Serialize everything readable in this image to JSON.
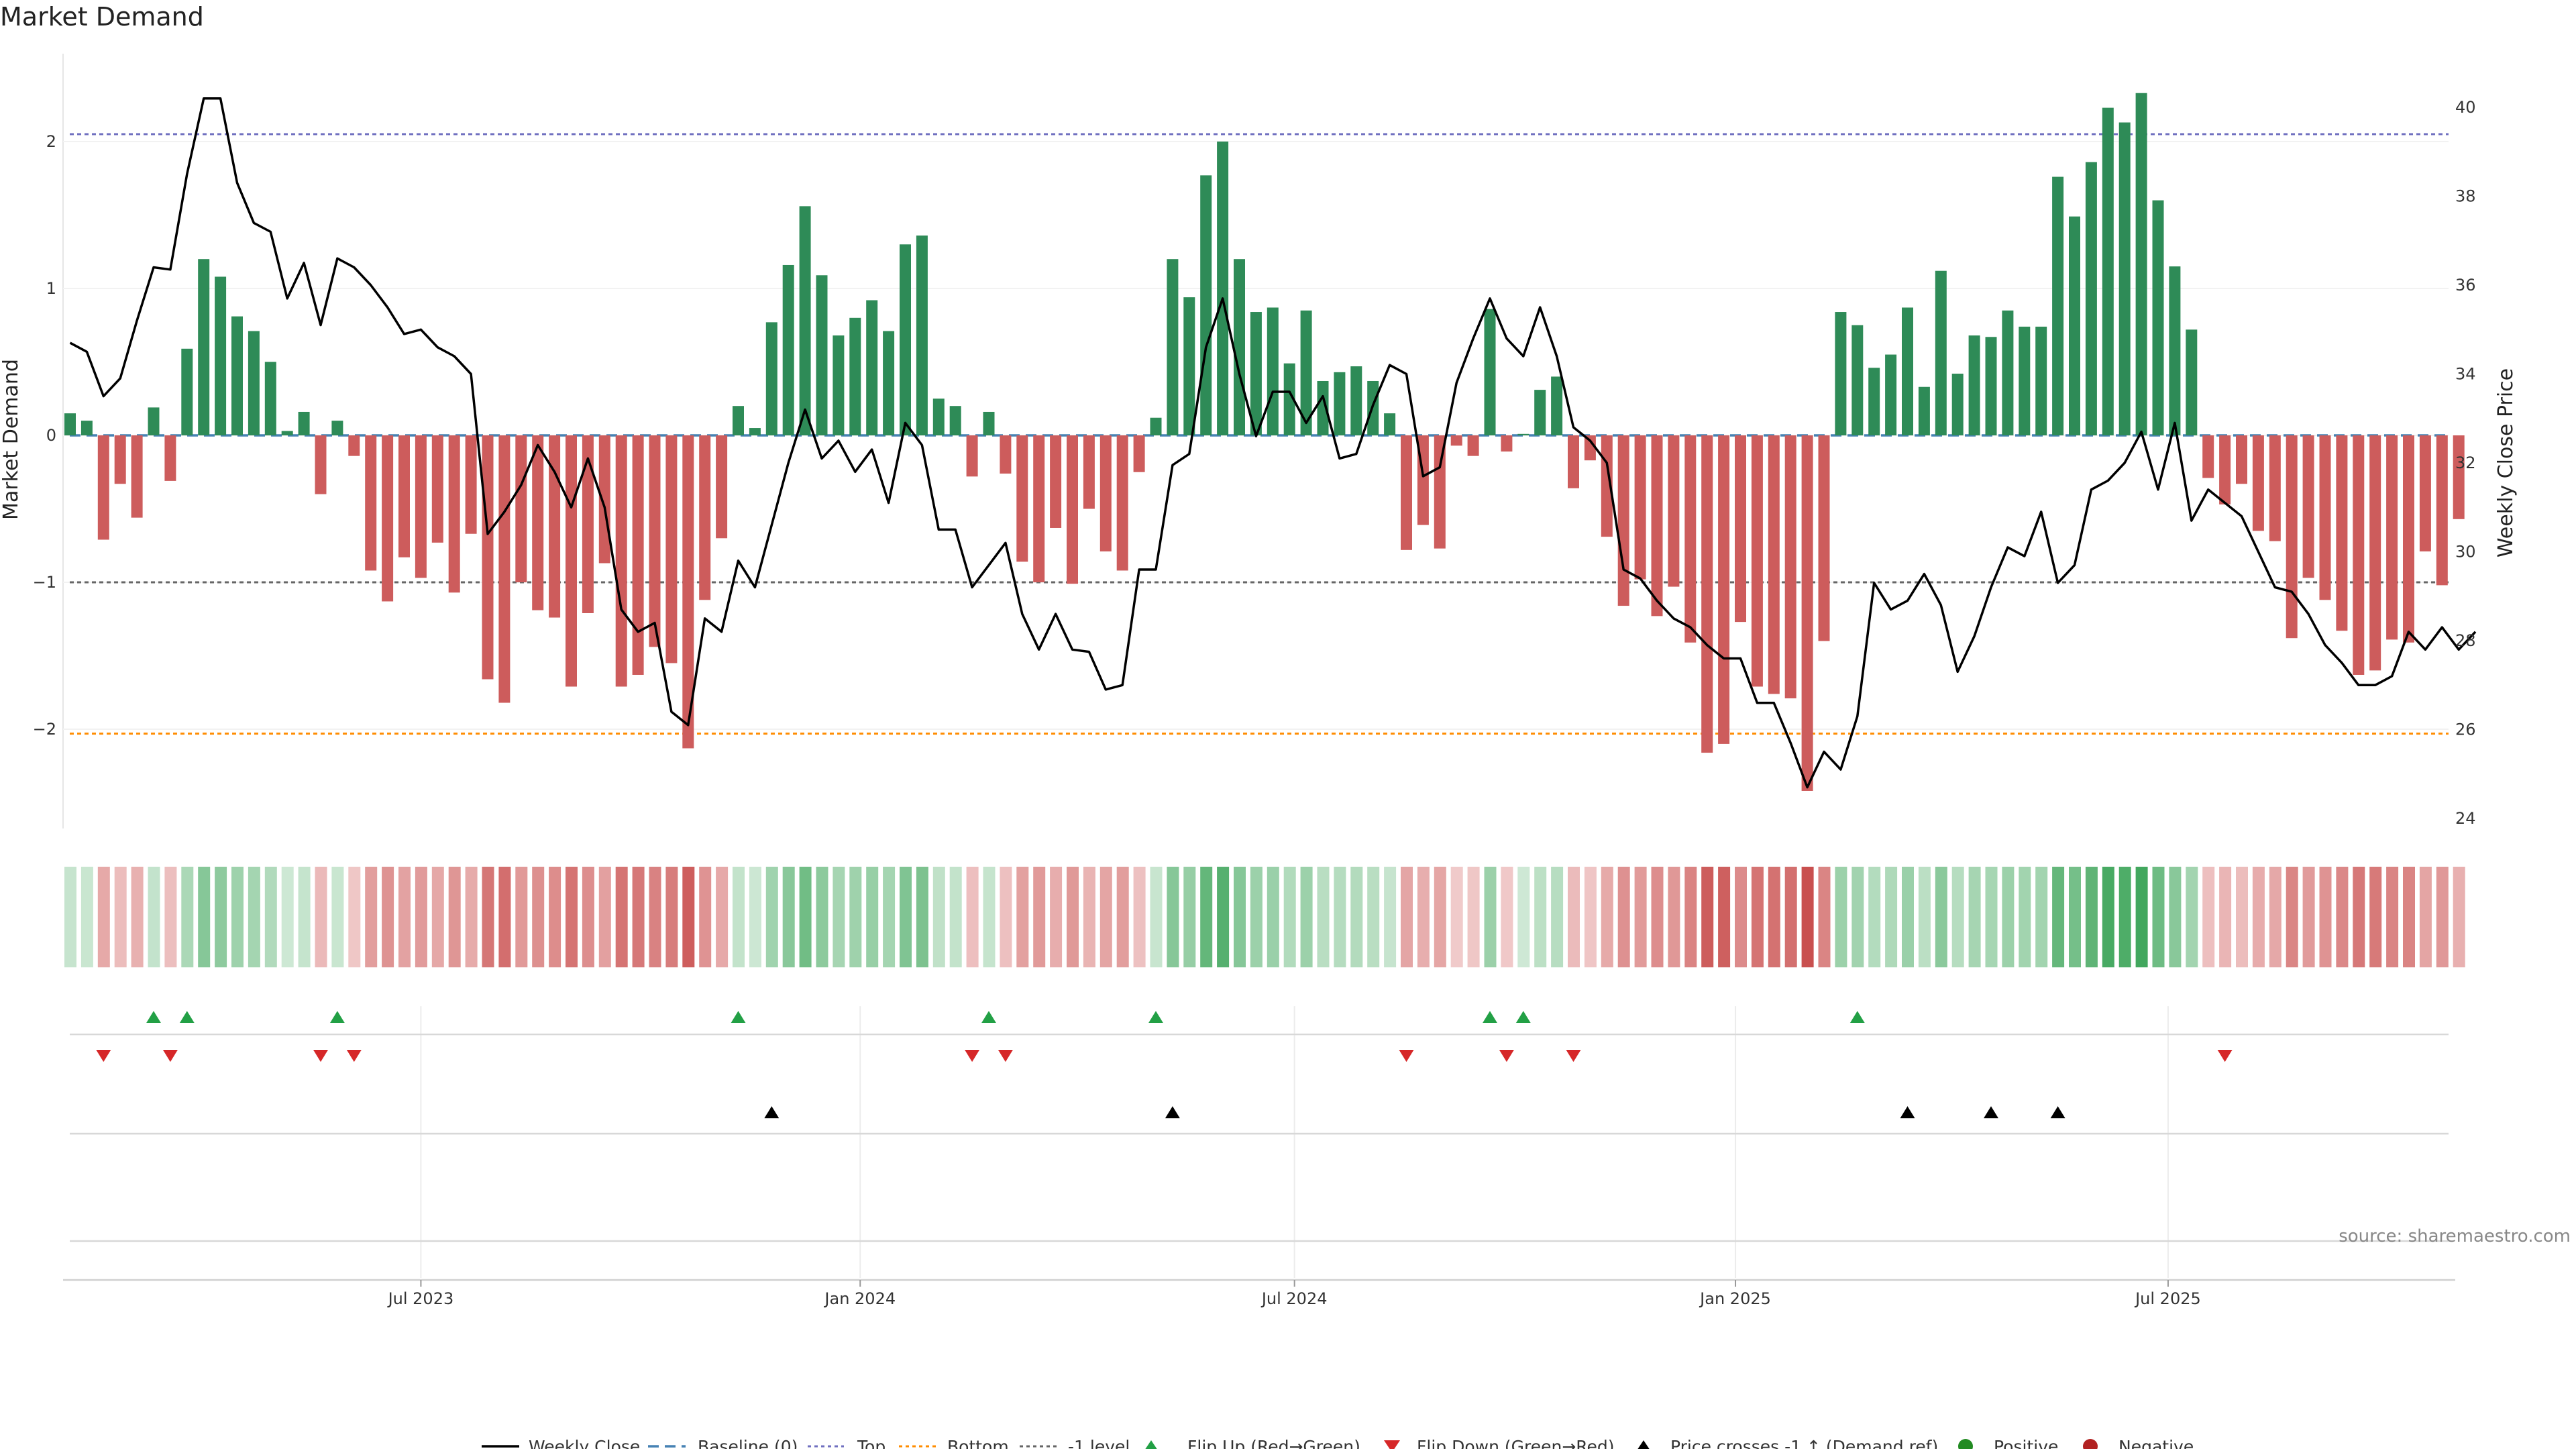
{
  "chart_data": {
    "type": "bar",
    "title": "Market Demand",
    "ylabel_left": "Market Demand",
    "ylabel_right": "Weekly Close Price",
    "ylim_left": [
      -2.7,
      2.6
    ],
    "ylim_right": [
      23.3,
      41.2
    ],
    "yticks_left": [
      2,
      1,
      0,
      -1,
      -2
    ],
    "ytick_labels_left": [
      "2",
      "1",
      "0",
      "−1",
      "−2"
    ],
    "yticks_right": [
      40,
      38,
      36,
      34,
      32,
      30,
      28,
      26,
      24
    ],
    "ytick_labels_right": [
      "40",
      "38",
      "36",
      "34",
      "32",
      "30",
      "28",
      "26",
      "24"
    ],
    "x_ticks": [
      {
        "label": "Jul 2023",
        "week": 21
      },
      {
        "label": "Jan 2024",
        "week": 47.3
      },
      {
        "label": "Jul 2024",
        "week": 73.3
      },
      {
        "label": "Jan 2025",
        "week": 99.7
      },
      {
        "label": "Jul 2025",
        "week": 125.6
      }
    ],
    "reference_lines": {
      "baseline": 0,
      "top": 2.05,
      "bottom": -2.03,
      "minus_one": -1
    },
    "colors": {
      "positive": "#2e8b57",
      "negative": "#cd5c5c",
      "price": "#000000",
      "baseline": "#4682b4",
      "top": "#7070c0",
      "bottom": "#ff8c00",
      "minus_one": "#666666",
      "flip_up": "#22a045",
      "flip_down": "#d62728",
      "cross": "#000000",
      "legend_positive": "#228b22",
      "legend_negative": "#b22222"
    },
    "demand": [
      0.15,
      0.1,
      -0.71,
      -0.33,
      -0.56,
      0.19,
      -0.31,
      0.59,
      1.2,
      1.08,
      0.81,
      0.71,
      0.5,
      0.03,
      0.16,
      -0.4,
      0.1,
      -0.14,
      -0.92,
      -1.13,
      -0.83,
      -0.97,
      -0.73,
      -1.07,
      -0.67,
      -1.66,
      -1.82,
      -1.0,
      -1.19,
      -1.24,
      -1.71,
      -1.21,
      -0.87,
      -1.71,
      -1.63,
      -1.44,
      -1.55,
      -2.13,
      -1.12,
      -0.7,
      0.2,
      0.05,
      0.77,
      1.16,
      1.56,
      1.09,
      0.68,
      0.8,
      0.92,
      0.71,
      1.3,
      1.36,
      0.25,
      0.2,
      -0.28,
      0.16,
      -0.26,
      -0.86,
      -1.0,
      -0.63,
      -1.01,
      -0.5,
      -0.79,
      -0.92,
      -0.25,
      0.12,
      1.2,
      0.94,
      1.77,
      2.0,
      1.2,
      0.84,
      0.87,
      0.49,
      0.85,
      0.37,
      0.43,
      0.47,
      0.37,
      0.15,
      -0.78,
      -0.61,
      -0.77,
      -0.07,
      -0.14,
      0.86,
      -0.11,
      0.01,
      0.31,
      0.4,
      -0.36,
      -0.17,
      -0.69,
      -1.16,
      -0.98,
      -1.23,
      -1.03,
      -1.41,
      -2.16,
      -2.1,
      -1.27,
      -1.71,
      -1.76,
      -1.79,
      -2.42,
      -1.4,
      0.84,
      0.75,
      0.46,
      0.55,
      0.87,
      0.33,
      1.12,
      0.42,
      0.68,
      0.67,
      0.85,
      0.74,
      0.74,
      1.76,
      1.49,
      1.86,
      2.23,
      2.13,
      2.33,
      1.6,
      1.15,
      0.72,
      -0.29,
      -0.47,
      -0.33,
      -0.65,
      -0.72,
      -1.38,
      -0.97,
      -1.12,
      -1.33,
      -1.63,
      -1.6,
      -1.39,
      -1.41,
      -0.79,
      -1.02,
      -0.57
    ],
    "price": [
      34.7,
      34.5,
      33.5,
      33.9,
      35.2,
      36.4,
      36.35,
      38.5,
      40.2,
      40.2,
      38.3,
      37.4,
      37.2,
      35.7,
      36.5,
      35.1,
      36.6,
      36.4,
      36.0,
      35.5,
      34.9,
      35.0,
      34.6,
      34.4,
      34.0,
      30.4,
      30.9,
      31.5,
      32.4,
      31.8,
      31.0,
      32.1,
      31.0,
      28.7,
      28.2,
      28.4,
      26.4,
      26.1,
      28.5,
      28.2,
      29.8,
      29.2,
      30.6,
      32.0,
      33.2,
      32.1,
      32.5,
      31.8,
      32.3,
      31.1,
      32.9,
      32.4,
      30.5,
      30.5,
      29.2,
      29.7,
      30.2,
      28.6,
      27.8,
      28.6,
      27.8,
      27.75,
      26.9,
      27.0,
      29.6,
      29.6,
      31.95,
      32.2,
      34.6,
      35.7,
      34.0,
      32.6,
      33.6,
      33.6,
      32.9,
      33.5,
      32.1,
      32.2,
      33.3,
      34.2,
      34.0,
      31.7,
      31.9,
      33.8,
      34.8,
      35.7,
      34.8,
      34.4,
      35.5,
      34.4,
      32.8,
      32.5,
      32.0,
      29.6,
      29.4,
      28.9,
      28.5,
      28.3,
      27.9,
      27.6,
      27.6,
      26.6,
      26.6,
      25.7,
      24.7,
      25.5,
      25.1,
      26.3,
      29.3,
      28.7,
      28.9,
      29.5,
      28.8,
      27.3,
      28.1,
      29.2,
      30.1,
      29.9,
      30.9,
      29.3,
      29.7,
      31.4,
      31.6,
      32.0,
      32.7,
      31.4,
      32.9,
      30.7,
      31.4,
      31.1,
      30.8,
      30.0,
      29.2,
      29.1,
      28.6,
      27.9,
      27.5,
      27.0,
      27.0,
      27.2,
      28.2,
      27.8,
      28.3,
      27.8,
      28.2
    ]
  },
  "flip_up_weeks": [
    5,
    7,
    16,
    40,
    55,
    65,
    85,
    87,
    107
  ],
  "flip_down_weeks": [
    2,
    6,
    15,
    17,
    54,
    56,
    80,
    86,
    90,
    129
  ],
  "cross_up_weeks": [
    42,
    66,
    110,
    115,
    119
  ],
  "legend": {
    "weekly_close": "Weekly Close",
    "baseline": "Baseline (0)",
    "top": "Top",
    "bottom": "Bottom",
    "minus_one": "-1 level",
    "flip_up": "Flip Up (Red→Green)",
    "flip_down": "Flip Down (Green→Red)",
    "cross": "Price crosses -1 ↑ (Demand ref)",
    "positive": "Positive",
    "negative": "Negative"
  },
  "source": "source: sharemaestro.com"
}
